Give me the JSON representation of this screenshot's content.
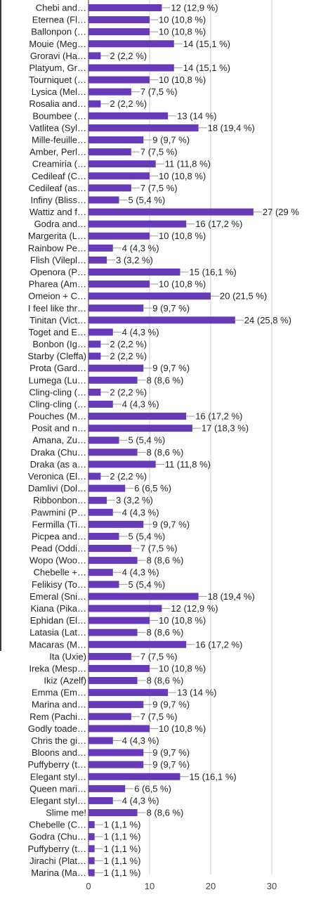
{
  "chart_data": {
    "type": "bar",
    "orientation": "horizontal",
    "bar_color": "#673ab7",
    "grid": true,
    "xlim": [
      0,
      30
    ],
    "xticks": [
      0,
      10,
      20,
      30
    ],
    "categories": [
      "Chebi and…",
      "Eternea (Fl…",
      "Ballonpon (…",
      "Mouie (Meg…",
      "Groravi (Ha…",
      "Platyum, Gr…",
      "Tourniquet (…",
      "Lysica (Mel…",
      "Rosalia and…",
      "Boumbee (…",
      "Vatlitea (Syl…",
      "Mille-feuille…",
      "Amber, Perl…",
      "Creamiria (…",
      "Cedileaf (C…",
      "Cedileaf (as…",
      "Infiny (Bliss…",
      "Wattiz and f…",
      "Godra and…",
      "Margerita (L…",
      "Rainbow Pe…",
      "Flish (Vilepl…",
      "Openora (P…",
      "Pharea (Am…",
      "Omeion + C…",
      "I feel like thr…",
      "Tinitan (Vict…",
      "Toget and E…",
      "Bonbon (Ig…",
      "Starby (Cleffa)",
      "Prota (Gard…",
      "Lumega (Lu…",
      "Cling-cling (…",
      "Cling-cling (…",
      "Pouches (M…",
      "Posit and n…",
      "Amana, Zu…",
      "Draka (Chu…",
      "Draka (as a…",
      "Veronica (El…",
      "Damlivi (Dol…",
      "Ribbonbon…",
      "Pawmini (P…",
      "Fermilla (Ti…",
      "Picpea and…",
      "Pead (Oddi…",
      "Wopo (Woo…",
      "Chebelle +…",
      "Felikisy (To…",
      "Emeral (Sni…",
      "Kiana (Pika…",
      "Ephidan (El…",
      "Latasia (Lat…",
      "Macaras (M…",
      "Ita (Uxie)",
      "Ireka (Mesp…",
      "Ikiz (Azelf)",
      "Emma (Em…",
      "Marina and…",
      "Rem (Pachi…",
      "Godly toade…",
      "Chris the gi…",
      "Bloons and…",
      "Puffyberry (t…",
      "Elegant styl…",
      "Queen mari…",
      "Elegant styl…",
      "Slime me!",
      "Chebelle (C…",
      "Godra (Chu…",
      "Puffyberry (t…",
      "Jirachi (Plat…",
      "Marina (Ma…"
    ],
    "values": [
      12,
      10,
      10,
      14,
      2,
      14,
      10,
      7,
      2,
      13,
      18,
      9,
      7,
      11,
      10,
      7,
      5,
      27,
      16,
      10,
      4,
      3,
      15,
      10,
      20,
      9,
      24,
      4,
      2,
      2,
      9,
      8,
      2,
      4,
      16,
      17,
      5,
      8,
      11,
      2,
      6,
      3,
      4,
      9,
      5,
      7,
      8,
      4,
      5,
      18,
      12,
      10,
      8,
      16,
      7,
      10,
      8,
      13,
      9,
      7,
      10,
      4,
      9,
      9,
      15,
      6,
      4,
      8,
      1,
      1,
      1,
      1,
      1
    ],
    "data_labels": [
      "12 (12,9 %)",
      "10 (10,8 %)",
      "10 (10,8 %)",
      "14 (15,1 %)",
      "2 (2,2 %)",
      "14 (15,1 %)",
      "10 (10,8 %)",
      "7 (7,5 %)",
      "2 (2,2 %)",
      "13 (14 %)",
      "18 (19,4 %)",
      "9 (9,7 %)",
      "7 (7,5 %)",
      "11 (11,8 %)",
      "10 (10,8 %)",
      "7 (7,5 %)",
      "5 (5,4 %)",
      "27 (29 %",
      "16 (17,2 %)",
      "10 (10,8 %)",
      "4 (4,3 %)",
      "3 (3,2 %)",
      "15 (16,1 %)",
      "10 (10,8 %)",
      "20 (21,5 %)",
      "9 (9,7 %)",
      "24 (25,8 %)",
      "4 (4,3 %)",
      "2 (2,2 %)",
      "2 (2,2 %)",
      "9 (9,7 %)",
      "8 (8,6 %)",
      "2 (2,2 %)",
      "4 (4,3 %)",
      "16 (17,2 %)",
      "17 (18,3 %)",
      "5 (5,4 %)",
      "8 (8,6 %)",
      "11 (11,8 %)",
      "2 (2,2 %)",
      "6 (6,5 %)",
      "3 (3,2 %)",
      "4 (4,3 %)",
      "9 (9,7 %)",
      "5 (5,4 %)",
      "7 (7,5 %)",
      "8 (8,6 %)",
      "4 (4,3 %)",
      "5 (5,4 %)",
      "18 (19,4 %)",
      "12 (12,9 %)",
      "10 (10,8 %)",
      "8 (8,6 %)",
      "16 (17,2 %)",
      "7 (7,5 %)",
      "10 (10,8 %)",
      "8 (8,6 %)",
      "13 (14 %)",
      "9 (9,7 %)",
      "7 (7,5 %)",
      "10 (10,8 %)",
      "4 (4,3 %)",
      "9 (9,7 %)",
      "9 (9,7 %)",
      "15 (16,1 %)",
      "6 (6,5 %)",
      "4 (4,3 %)",
      "8 (8,6 %)",
      "1 (1,1 %)",
      "1 (1,1 %)",
      "1 (1,1 %)",
      "1 (1,1 %)",
      "1 (1,1 %)"
    ],
    "title": "",
    "xlabel": "",
    "ylabel": ""
  }
}
